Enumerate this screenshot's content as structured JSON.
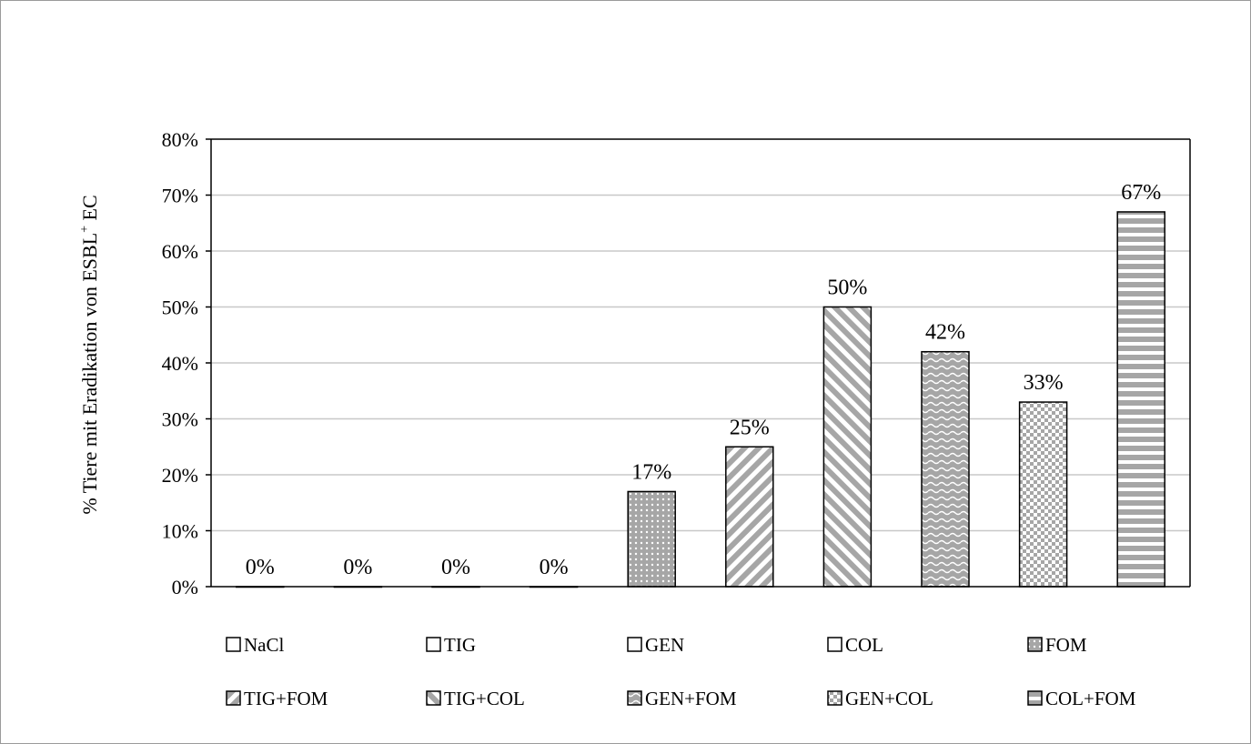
{
  "chart_data": {
    "type": "bar",
    "title": "",
    "xlabel": "",
    "ylabel": "% Tiere mit Eradikation von ESBL",
    "ylabel_superscript": "+",
    "ylabel_suffix": " EC",
    "ylim": [
      0,
      80
    ],
    "y_ticks": [
      0,
      10,
      20,
      30,
      40,
      50,
      60,
      70,
      80
    ],
    "y_tick_labels": [
      "0%",
      "10%",
      "20%",
      "30%",
      "40%",
      "50%",
      "60%",
      "70%",
      "80%"
    ],
    "grid": true,
    "legend_position": "bottom",
    "categories": [
      "NaCl",
      "TIG",
      "GEN",
      "COL",
      "FOM",
      "TIG+FOM",
      "TIG+COL",
      "GEN+FOM",
      "GEN+COL",
      "COL+FOM"
    ],
    "values": [
      0,
      0,
      0,
      0,
      17,
      25,
      50,
      42,
      33,
      67
    ],
    "data_labels": [
      "0%",
      "0%",
      "0%",
      "0%",
      "17%",
      "25%",
      "50%",
      "42%",
      "33%",
      "67%"
    ],
    "patterns": [
      "none",
      "none",
      "none",
      "none",
      "dots",
      "diag-down",
      "diag-up",
      "wave",
      "checker",
      "horizontal"
    ],
    "colors": {
      "pattern": "#a6a6a6",
      "outline": "#000000",
      "grid": "#c8c8c8"
    }
  }
}
